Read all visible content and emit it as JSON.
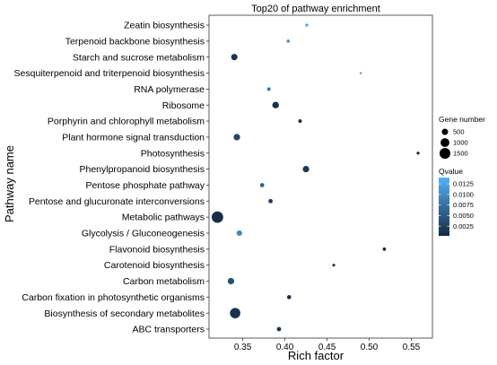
{
  "chart_data": {
    "type": "scatter",
    "title": "Top20 of pathway enrichment",
    "xlabel": "Rich factor",
    "ylabel": "Pathway name",
    "xlim": [
      0.31,
      0.575
    ],
    "xticks": [
      "0.35",
      "0.40",
      "0.45",
      "0.50",
      "0.55"
    ],
    "xtick_values": [
      0.35,
      0.4,
      0.45,
      0.5,
      0.55
    ],
    "categories": [
      "Zeatin biosynthesis",
      "Terpenoid backbone biosynthesis",
      "Starch and sucrose metabolism",
      "Sesquiterpenoid and triterpenoid biosynthesis",
      "RNA polymerase",
      "Ribosome",
      "Porphyrin and chlorophyll metabolism",
      "Plant hormone signal transduction",
      "Photosynthesis",
      "Phenylpropanoid biosynthesis",
      "Pentose phosphate pathway",
      "Pentose and glucuronate interconversions",
      "Metabolic pathways",
      "Glycolysis / Gluconeogenesis",
      "Flavonoid biosynthesis",
      "Carotenoid biosynthesis",
      "Carbon metabolism",
      "Carbon fixation in photosynthetic organisms",
      "Biosynthesis of secondary metabolites",
      "ABC transporters"
    ],
    "points": [
      {
        "pathway": "Zeatin biosynthesis",
        "rich_factor": 0.426,
        "gene_number": 110,
        "qvalue": 0.0118
      },
      {
        "pathway": "Terpenoid backbone biosynthesis",
        "rich_factor": 0.404,
        "gene_number": 140,
        "qvalue": 0.011
      },
      {
        "pathway": "Starch and sucrose metabolism",
        "rich_factor": 0.34,
        "gene_number": 520,
        "qvalue": 0.0012
      },
      {
        "pathway": "Sesquiterpenoid and triterpenoid biosynthesis",
        "rich_factor": 0.49,
        "gene_number": 40,
        "qvalue": 0.0135
      },
      {
        "pathway": "RNA polymerase",
        "rich_factor": 0.381,
        "gene_number": 160,
        "qvalue": 0.008
      },
      {
        "pathway": "Ribosome",
        "rich_factor": 0.389,
        "gene_number": 560,
        "qvalue": 0.0008
      },
      {
        "pathway": "Porphyrin and chlorophyll metabolism",
        "rich_factor": 0.418,
        "gene_number": 170,
        "qvalue": 0.001
      },
      {
        "pathway": "Plant hormone signal transduction",
        "rich_factor": 0.343,
        "gene_number": 540,
        "qvalue": 0.0032
      },
      {
        "pathway": "Photosynthesis",
        "rich_factor": 0.558,
        "gene_number": 110,
        "qvalue": 0.0004
      },
      {
        "pathway": "Phenylpropanoid biosynthesis",
        "rich_factor": 0.425,
        "gene_number": 520,
        "qvalue": 0.0014
      },
      {
        "pathway": "Pentose phosphate pathway",
        "rich_factor": 0.373,
        "gene_number": 230,
        "qvalue": 0.0055
      },
      {
        "pathway": "Pentose and glucuronate interconversions",
        "rich_factor": 0.383,
        "gene_number": 240,
        "qvalue": 0.0016
      },
      {
        "pathway": "Metabolic pathways",
        "rich_factor": 0.32,
        "gene_number": 1700,
        "qvalue": 0.0006
      },
      {
        "pathway": "Glycolysis / Gluconeogenesis",
        "rich_factor": 0.346,
        "gene_number": 400,
        "qvalue": 0.0098
      },
      {
        "pathway": "Flavonoid biosynthesis",
        "rich_factor": 0.518,
        "gene_number": 150,
        "qvalue": 0.0004
      },
      {
        "pathway": "Carotenoid biosynthesis",
        "rich_factor": 0.458,
        "gene_number": 100,
        "qvalue": 0.0005
      },
      {
        "pathway": "Carbon metabolism",
        "rich_factor": 0.336,
        "gene_number": 550,
        "qvalue": 0.0042
      },
      {
        "pathway": "Carbon fixation in photosynthetic organisms",
        "rich_factor": 0.405,
        "gene_number": 220,
        "qvalue": 0.0008
      },
      {
        "pathway": "Biosynthesis of secondary metabolites",
        "rich_factor": 0.341,
        "gene_number": 1400,
        "qvalue": 0.0012
      },
      {
        "pathway": "ABC transporters",
        "rich_factor": 0.393,
        "gene_number": 240,
        "qvalue": 0.0014
      }
    ],
    "legend": {
      "placement": "right",
      "size_title": "Gene number",
      "size_labels": [
        "500",
        "1000",
        "1500"
      ],
      "size_values": [
        500,
        1000,
        1500
      ],
      "color_title": "Qvalue",
      "color_labels": [
        "0.0125",
        "0.0100",
        "0.0075",
        "0.0050",
        "0.0025"
      ],
      "color_values": [
        0.0125,
        0.01,
        0.0075,
        0.005,
        0.0025
      ],
      "color_range": [
        0.0002,
        0.014
      ],
      "color_low": "#132B43",
      "color_high": "#56B1F7"
    },
    "grid": false,
    "panel_border": true
  }
}
